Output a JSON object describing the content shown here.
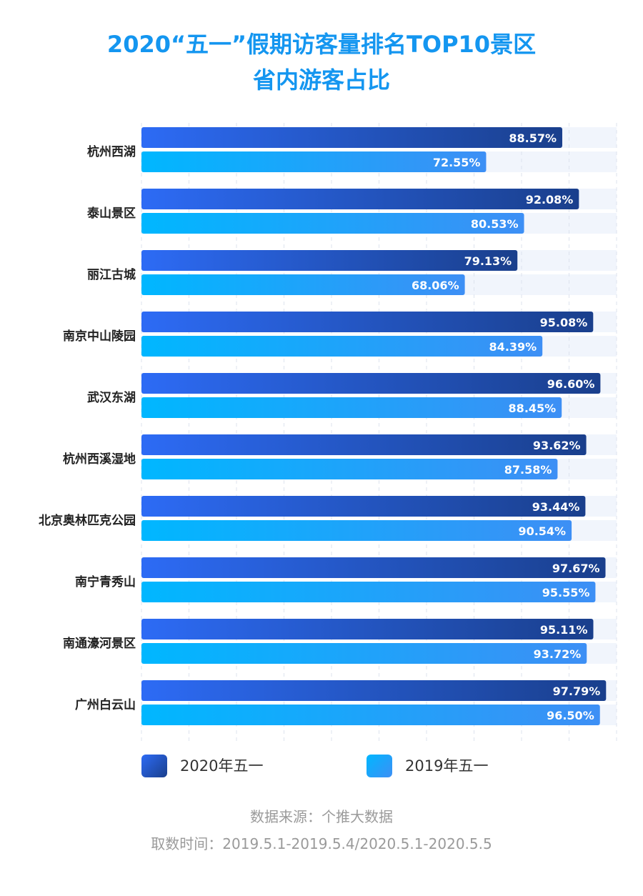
{
  "chart_data": {
    "type": "bar",
    "orientation": "horizontal",
    "title": "2020“五一”假期访客量排名TOP10景区",
    "subtitle": "省内游客占比",
    "categories": [
      "杭州西湖",
      "泰山景区",
      "丽江古城",
      "南京中山陵园",
      "武汉东湖",
      "杭州西溪湿地",
      "北京奥林匹克公园",
      "南宁青秀山",
      "南通濠河景区",
      "广州白云山"
    ],
    "series": [
      {
        "name": "2020年五一",
        "values": [
          88.57,
          92.08,
          79.13,
          95.08,
          96.6,
          93.62,
          93.44,
          97.67,
          95.11,
          97.79
        ],
        "labels": [
          "88.57%",
          "92.08%",
          "79.13%",
          "95.08%",
          "96.60%",
          "93.62%",
          "93.44%",
          "97.67%",
          "95.11%",
          "97.79%"
        ],
        "color_start": "#2d6bf5",
        "color_end": "#1a3f8c"
      },
      {
        "name": "2019年五一",
        "values": [
          72.55,
          80.53,
          68.06,
          84.39,
          88.45,
          87.58,
          90.54,
          95.55,
          93.72,
          96.5
        ],
        "labels": [
          "72.55%",
          "80.53%",
          "68.06%",
          "84.39%",
          "88.45%",
          "87.58%",
          "90.54%",
          "95.55%",
          "93.72%",
          "96.50%"
        ],
        "color_start": "#00b7ff",
        "color_end": "#3d8ff5"
      }
    ],
    "xlim": [
      0,
      100
    ],
    "grid": true,
    "legend": "bottom"
  },
  "footer": {
    "source": "数据来源：个推大数据",
    "period": "取数时间：2019.5.1-2019.5.4/2020.5.1-2020.5.5"
  }
}
